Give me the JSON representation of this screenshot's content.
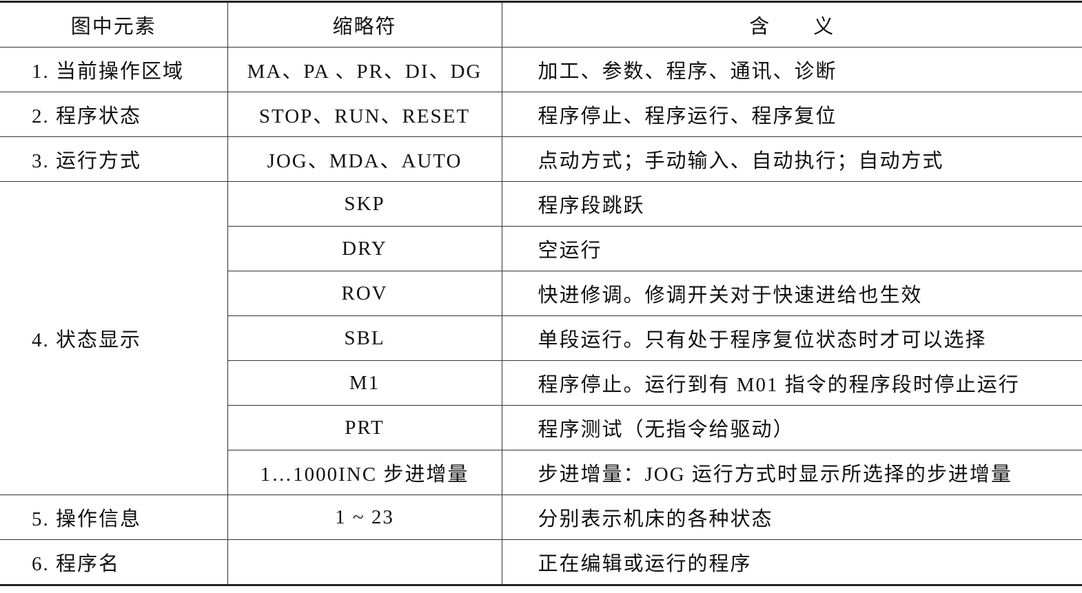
{
  "headers": [
    "图中元素",
    "缩略符",
    "含　　义"
  ],
  "rows": [
    {
      "element": "1. 当前操作区域",
      "abbr": "MA、PA 、PR、DI、DG",
      "meaning": "加工、参数、程序、通讯、诊断"
    },
    {
      "element": "2. 程序状态",
      "abbr": "STOP、RUN、RESET",
      "meaning": "程序停止、程序运行、程序复位"
    },
    {
      "element": "3. 运行方式",
      "abbr": "JOG、MDA、AUTO",
      "meaning": "点动方式；手动输入、自动执行；自动方式"
    },
    {
      "element": "4. 状态显示",
      "sub": [
        {
          "abbr": "SKP",
          "meaning": "程序段跳跃"
        },
        {
          "abbr": "DRY",
          "meaning": "空运行"
        },
        {
          "abbr": "ROV",
          "meaning": "快进修调。修调开关对于快速进给也生效"
        },
        {
          "abbr": "SBL",
          "meaning": "单段运行。只有处于程序复位状态时才可以选择"
        },
        {
          "abbr": "M1",
          "meaning": "程序停止。运行到有 M01 指令的程序段时停止运行"
        },
        {
          "abbr": "PRT",
          "meaning": "程序测试（无指令给驱动）"
        },
        {
          "abbr": "1…1000INC 步进增量",
          "meaning": "步进增量：JOG 运行方式时显示所选择的步进增量"
        }
      ]
    },
    {
      "element": "5. 操作信息",
      "abbr": "1 ~ 23",
      "meaning": "分别表示机床的各种状态"
    },
    {
      "element": "6. 程序名",
      "abbr": "",
      "meaning": "正在编辑或运行的程序"
    }
  ]
}
